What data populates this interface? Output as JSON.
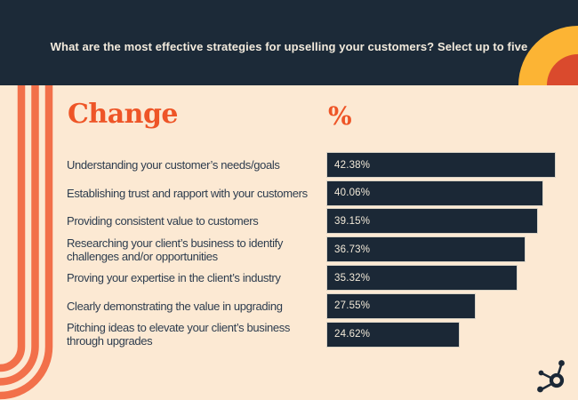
{
  "header": {
    "title": "What are the most effective strategies for upselling your customers? Select up to five"
  },
  "columns": {
    "category_header": "Change",
    "value_header": "%"
  },
  "chart_data": {
    "type": "bar",
    "orientation": "horizontal",
    "title": "What are the most effective strategies for upselling your customers? Select up to five",
    "categories": [
      "Understanding your customer’s needs/goals",
      "Establishing trust and rapport with your customers",
      "Providing consistent value to customers",
      "Researching your client’s business to identify challenges and/or opportunities",
      "Proving your expertise in the client’s industry",
      "Clearly demonstrating the value in upgrading",
      "Pitching ideas to elevate your client’s business through upgrades"
    ],
    "values": [
      42.38,
      40.06,
      39.15,
      36.73,
      35.32,
      27.55,
      24.62
    ],
    "value_labels": [
      "42.38%",
      "40.06%",
      "39.15%",
      "36.73%",
      "35.32%",
      "27.55%",
      "24.62%"
    ],
    "xlim": [
      0,
      42.38
    ],
    "grid": false,
    "legend": false,
    "bar_color": "#1b2836",
    "value_text_color": "#f3ead9"
  },
  "branding": {
    "logo": "hubspot-sprocket"
  },
  "colors": {
    "background": "#fce9d3",
    "header_bg": "#1c2a38",
    "bar_navy": "#1b2836",
    "accent_orange": "#ee5527",
    "stripe_orange": "#f2704a",
    "arc_yellow": "#fcb434",
    "arc_red": "#da4a2d",
    "label_text": "#2d3c4e",
    "header_text": "#f3ebdd"
  }
}
